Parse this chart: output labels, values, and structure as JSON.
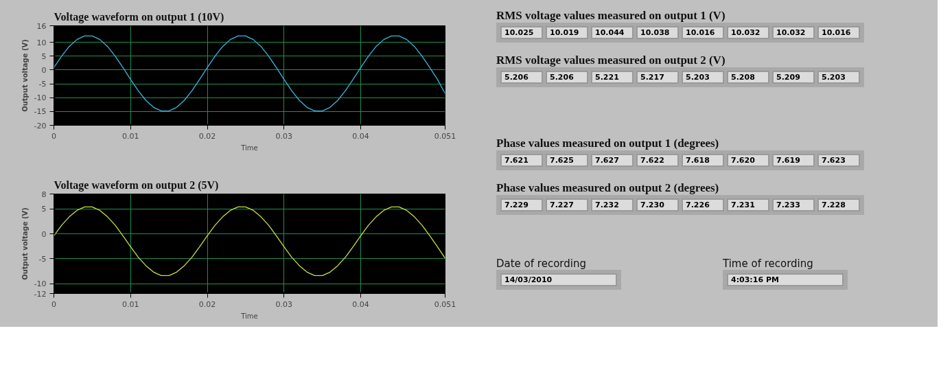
{
  "chart_data": [
    {
      "type": "line",
      "title": "Voltage waveform on output 1 (10V)",
      "xlabel": "Time",
      "ylabel": "Output voltage (V)",
      "xlim": [
        0,
        0.051
      ],
      "xticks": [
        0,
        0.01,
        0.02,
        0.03,
        0.04,
        0.051
      ],
      "ylim": [
        -20,
        16
      ],
      "yticks": [
        -20,
        -15,
        -10,
        -5,
        0,
        5,
        10,
        16
      ],
      "grid": true,
      "x": [
        0,
        0.001,
        0.002,
        0.003,
        0.004,
        0.005,
        0.006,
        0.007,
        0.008,
        0.009,
        0.01,
        0.011,
        0.012,
        0.013,
        0.014,
        0.015,
        0.016,
        0.017,
        0.018,
        0.019,
        0.02,
        0.021,
        0.022,
        0.023,
        0.024,
        0.025,
        0.026,
        0.027,
        0.028,
        0.029,
        0.03,
        0.031,
        0.032,
        0.033,
        0.034,
        0.035,
        0.036,
        0.037,
        0.038,
        0.039,
        0.04,
        0.041,
        0.042,
        0.043,
        0.044,
        0.045,
        0.046,
        0.047,
        0.048,
        0.049,
        0.05,
        0.051
      ],
      "series": [
        {
          "color": "#3cb6dc",
          "values": [
            0.9,
            5.0,
            8.5,
            11.0,
            12.3,
            12.3,
            11.0,
            8.5,
            5.0,
            0.9,
            -3.4,
            -7.5,
            -11.0,
            -13.5,
            -14.8,
            -14.8,
            -13.5,
            -11.0,
            -7.5,
            -3.4,
            0.9,
            5.0,
            8.5,
            11.0,
            12.3,
            12.3,
            11.0,
            8.5,
            5.0,
            0.9,
            -3.4,
            -7.5,
            -11.0,
            -13.5,
            -14.8,
            -14.8,
            -13.5,
            -11.0,
            -7.5,
            -3.4,
            0.9,
            5.0,
            8.5,
            11.0,
            12.3,
            12.3,
            11.0,
            8.5,
            5.0,
            0.9,
            -3.4,
            -8.5
          ]
        }
      ]
    },
    {
      "type": "line",
      "title": "Voltage waveform on output 2 (5V)",
      "xlabel": "Time",
      "ylabel": "Output voltage (V)",
      "xlim": [
        0,
        0.051
      ],
      "xticks": [
        0,
        0.01,
        0.02,
        0.03,
        0.04,
        0.051
      ],
      "ylim": [
        -12,
        8
      ],
      "yticks": [
        -12,
        -10,
        -5,
        0,
        5,
        8
      ],
      "grid": true,
      "x": [
        0,
        0.001,
        0.002,
        0.003,
        0.004,
        0.005,
        0.006,
        0.007,
        0.008,
        0.009,
        0.01,
        0.011,
        0.012,
        0.013,
        0.014,
        0.015,
        0.016,
        0.017,
        0.018,
        0.019,
        0.02,
        0.021,
        0.022,
        0.023,
        0.024,
        0.025,
        0.026,
        0.027,
        0.028,
        0.029,
        0.03,
        0.031,
        0.032,
        0.033,
        0.034,
        0.035,
        0.036,
        0.037,
        0.038,
        0.039,
        0.04,
        0.041,
        0.042,
        0.043,
        0.044,
        0.045,
        0.046,
        0.047,
        0.048,
        0.049,
        0.05,
        0.051
      ],
      "series": [
        {
          "color": "#c8e03c",
          "values": [
            -0.4,
            1.7,
            3.4,
            4.7,
            5.4,
            5.4,
            4.7,
            3.4,
            1.7,
            -0.4,
            -2.6,
            -4.7,
            -6.4,
            -7.7,
            -8.4,
            -8.4,
            -7.7,
            -6.4,
            -4.7,
            -2.6,
            -0.4,
            1.7,
            3.4,
            4.7,
            5.4,
            5.4,
            4.7,
            3.4,
            1.7,
            -0.4,
            -2.6,
            -4.7,
            -6.4,
            -7.7,
            -8.4,
            -8.4,
            -7.7,
            -6.4,
            -4.7,
            -2.6,
            -0.4,
            1.7,
            3.4,
            4.7,
            5.4,
            5.4,
            4.7,
            3.4,
            1.7,
            -0.4,
            -2.6,
            -4.9
          ]
        }
      ]
    },
    {
      "type": "other",
      "title": "RMS voltage values measured on output 1 (V)",
      "annotations": [
        "10.025",
        "10.019",
        "10.044",
        "10.038",
        "10.016",
        "10.032",
        "10.032",
        "10.016"
      ]
    },
    {
      "type": "other",
      "title": "RMS voltage values measured on output 2 (V)",
      "annotations": [
        "5.206",
        "5.206",
        "5.221",
        "5.217",
        "5.203",
        "5.208",
        "5.209",
        "5.203"
      ]
    },
    {
      "type": "other",
      "title": "Phase values measured on output 1 (degrees)",
      "annotations": [
        "7.621",
        "7.625",
        "7.627",
        "7.622",
        "7.618",
        "7.620",
        "7.619",
        "7.623"
      ]
    },
    {
      "type": "other",
      "title": "Phase values measured on output 2 (degrees)",
      "annotations": [
        "7.229",
        "7.227",
        "7.232",
        "7.230",
        "7.226",
        "7.231",
        "7.233",
        "7.228"
      ]
    },
    {
      "type": "other",
      "title": "Date of recording",
      "annotations": [
        "14/03/2010"
      ]
    },
    {
      "type": "other",
      "title": "Time of recording",
      "annotations": [
        "4:03:16 PM"
      ]
    }
  ]
}
